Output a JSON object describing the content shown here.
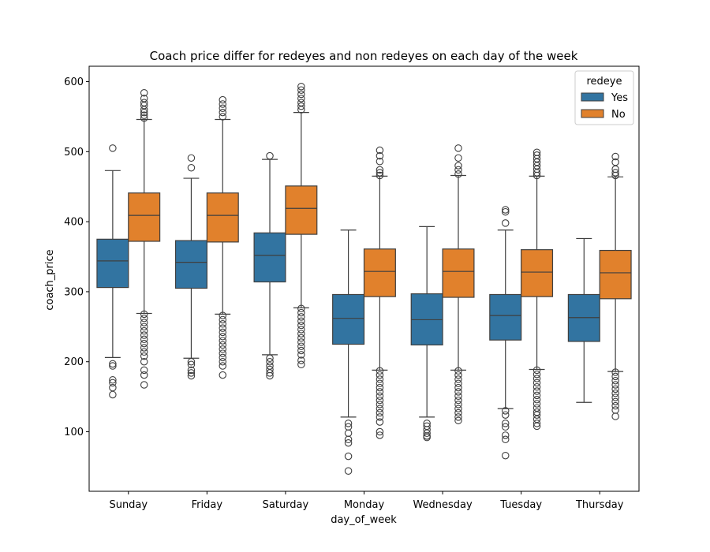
{
  "chart_data": {
    "type": "box",
    "title": "Coach price differ for redeyes and non redeyes on each day of the week",
    "xlabel": "day_of_week",
    "ylabel": "coach_price",
    "ylim": [
      15,
      622
    ],
    "yticks": [
      100,
      200,
      300,
      400,
      500,
      600
    ],
    "categories": [
      "Sunday",
      "Friday",
      "Saturday",
      "Monday",
      "Wednesday",
      "Tuesday",
      "Thursday"
    ],
    "legend": {
      "title": "redeye",
      "position": "top-right"
    },
    "series": [
      {
        "name": "Yes",
        "color": "#3274a1",
        "boxes": [
          {
            "low": 206,
            "q1": 306,
            "median": 344,
            "q3": 375,
            "high": 473,
            "outliers": [
              505,
              197,
              194,
              174,
              170,
              163,
              153
            ]
          },
          {
            "low": 205,
            "q1": 305,
            "median": 342,
            "q3": 373,
            "high": 462,
            "outliers": [
              491,
              477,
              200,
              196,
              188,
              184,
              180
            ]
          },
          {
            "low": 210,
            "q1": 314,
            "median": 352,
            "q3": 384,
            "high": 489,
            "outliers": [
              494,
              205,
              200,
              194,
              189,
              184,
              180
            ]
          },
          {
            "low": 121,
            "q1": 225,
            "median": 262,
            "q3": 296,
            "high": 388,
            "outliers": [
              112,
              107,
              98,
              89,
              84,
              65,
              44
            ]
          },
          {
            "low": 121,
            "q1": 224,
            "median": 260,
            "q3": 297,
            "high": 393,
            "outliers": [
              112,
              108,
              103,
              98,
              94,
              92
            ]
          },
          {
            "low": 133,
            "q1": 231,
            "median": 266,
            "q3": 296,
            "high": 388,
            "outliers": [
              417,
              414,
              398,
              130,
              124,
              112,
              107,
              95,
              89,
              66
            ]
          },
          {
            "low": 142,
            "q1": 229,
            "median": 263,
            "q3": 296,
            "high": 376,
            "outliers": []
          }
        ]
      },
      {
        "name": "No",
        "color": "#e1812c",
        "boxes": [
          {
            "low": 269,
            "q1": 372,
            "median": 409,
            "q3": 441,
            "high": 546,
            "outliers": [
              584,
              576,
              570,
              566,
              560,
              556,
              552,
              548,
              268,
              262,
              256,
              250,
              244,
              238,
              232,
              226,
              220,
              214,
              208,
              200,
              188,
              181,
              167
            ]
          },
          {
            "low": 268,
            "q1": 371,
            "median": 409,
            "q3": 441,
            "high": 546,
            "outliers": [
              574,
              568,
              562,
              556,
              550,
              266,
              260,
              254,
              248,
              242,
              236,
              230,
              224,
              218,
              212,
              206,
              200,
              194,
              181
            ]
          },
          {
            "low": 277,
            "q1": 382,
            "median": 419,
            "q3": 451,
            "high": 556,
            "outliers": [
              593,
              588,
              582,
              576,
              570,
              565,
              560,
              276,
              270,
              264,
              258,
              252,
              246,
              240,
              234,
              228,
              222,
              216,
              210,
              202,
              196
            ]
          },
          {
            "low": 188,
            "q1": 293,
            "median": 329,
            "q3": 361,
            "high": 465,
            "outliers": [
              502,
              494,
              486,
              474,
              470,
              466,
              187,
              181,
              175,
              169,
              163,
              157,
              151,
              145,
              139,
              133,
              127,
              121,
              114,
              100,
              95
            ]
          },
          {
            "low": 188,
            "q1": 292,
            "median": 329,
            "q3": 361,
            "high": 466,
            "outliers": [
              505,
              491,
              480,
              474,
              468,
              187,
              181,
              175,
              169,
              163,
              157,
              151,
              145,
              139,
              133,
              127,
              121,
              116
            ]
          },
          {
            "low": 189,
            "q1": 293,
            "median": 328,
            "q3": 360,
            "high": 465,
            "outliers": [
              499,
              495,
              490,
              485,
              480,
              475,
              470,
              466,
              188,
              182,
              176,
              170,
              164,
              158,
              152,
              146,
              140,
              134,
              128,
              124,
              118,
              112,
              108
            ]
          },
          {
            "low": 186,
            "q1": 290,
            "median": 327,
            "q3": 359,
            "high": 464,
            "outliers": [
              493,
              485,
              475,
              470,
              466,
              185,
              179,
              173,
              167,
              161,
              155,
              149,
              143,
              137,
              131,
              122
            ]
          }
        ]
      }
    ]
  }
}
